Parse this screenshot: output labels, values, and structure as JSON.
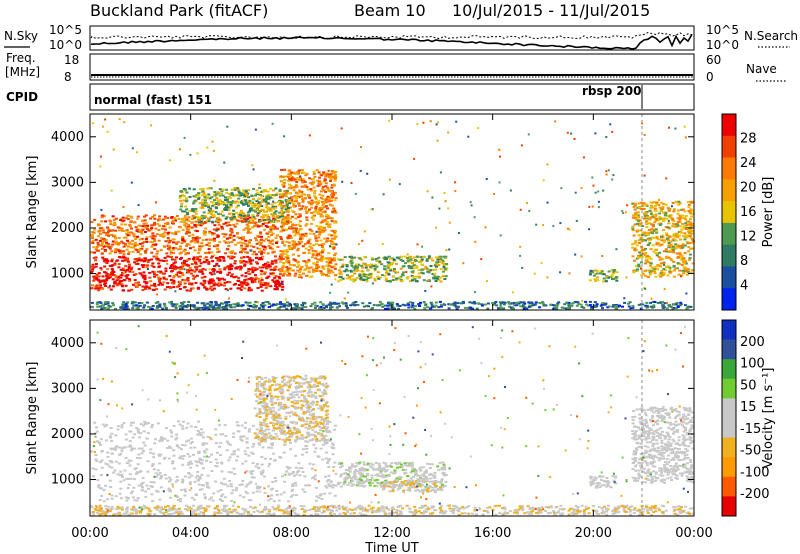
{
  "header": {
    "station": "Buckland Park (fitACF)",
    "beam": "Beam 10",
    "date_range": "10/Jul/2015 - 11/Jul/2015"
  },
  "summary_panels": {
    "nsky_label": "N.Sky",
    "nsearch_label": "N.Search",
    "noise_ticks": [
      "10^5",
      "10^0"
    ],
    "freq_label": "Freq.",
    "freq_unit": "[MHz]",
    "freq_ticks": [
      "18",
      "8"
    ],
    "nave_label": "Nave",
    "nave_ticks": [
      "60",
      "0"
    ],
    "cpid_label": "CPID",
    "cpid_modes": [
      "normal (fast) 151",
      "rbsp 200"
    ]
  },
  "colors": {
    "power_scale": [
      "#0022ee",
      "#1d4fa0",
      "#2f7a62",
      "#4f9a52",
      "#e8c400",
      "#f5a000",
      "#ff7a00",
      "#f04000",
      "#ee0000"
    ],
    "velocity_scale": [
      "#e60000",
      "#ff5a00",
      "#ff9a00",
      "#f0b020",
      "#c8c8c8",
      "#c8c8c8",
      "#70cc30",
      "#3aa838",
      "#30509a",
      "#1030c0"
    ],
    "scatter_gray": "#c4c4c4"
  },
  "chart_data": [
    {
      "type": "heatmap",
      "name": "power",
      "xlabel": "",
      "ylabel": "Slant Range [km]",
      "yticks": [
        "1000",
        "2000",
        "3000",
        "4000"
      ],
      "ylim": [
        200,
        4500
      ],
      "xlim": [
        0,
        24
      ],
      "colorbar": {
        "label": "Power [dB]",
        "ticks": [
          "28",
          "24",
          "20",
          "16",
          "12",
          "8",
          "4"
        ],
        "range": [
          0,
          32
        ]
      },
      "features": [
        {
          "t_start": 0.0,
          "t_end": 7.7,
          "range_km": [
            600,
            1400
          ],
          "power_db": 30
        },
        {
          "t_start": 0.0,
          "t_end": 7.5,
          "range_km": [
            1400,
            2300
          ],
          "power_db": 24
        },
        {
          "t_start": 7.5,
          "t_end": 9.8,
          "range_km": [
            900,
            3300
          ],
          "power_db": 22
        },
        {
          "t_start": 3.5,
          "t_end": 8.0,
          "range_km": [
            2100,
            2900
          ],
          "power_db": 14
        },
        {
          "t_start": 9.8,
          "t_end": 14.2,
          "range_km": [
            800,
            1400
          ],
          "power_db": 14
        },
        {
          "t_start": 19.8,
          "t_end": 21.0,
          "range_km": [
            800,
            1100
          ],
          "power_db": 14
        },
        {
          "t_start": 21.5,
          "t_end": 24.0,
          "range_km": [
            900,
            2600
          ],
          "power_db": 18
        },
        {
          "t_start": 0.0,
          "t_end": 24.0,
          "range_km": [
            200,
            400
          ],
          "power_db": 8
        }
      ]
    },
    {
      "type": "heatmap",
      "name": "velocity",
      "xlabel": "Time UT",
      "ylabel": "Slant Range [km]",
      "xticks": [
        "00:00",
        "04:00",
        "08:00",
        "12:00",
        "16:00",
        "20:00",
        "00:00"
      ],
      "yticks": [
        "1000",
        "2000",
        "3000",
        "4000"
      ],
      "ylim": [
        200,
        4500
      ],
      "xlim": [
        0,
        24
      ],
      "colorbar": {
        "label": "Velocity [m s⁻¹]",
        "ticks": [
          "200",
          "100",
          "50",
          "15",
          "-15",
          "-50",
          "-100",
          "-200"
        ],
        "range": [
          -250,
          250
        ]
      },
      "features": [
        {
          "t_start": 0.0,
          "t_end": 9.8,
          "range_km": [
            500,
            2300
          ],
          "velocity": 0
        },
        {
          "t_start": 6.5,
          "t_end": 9.5,
          "range_km": [
            1800,
            3300
          ],
          "velocity": -40
        },
        {
          "t_start": 9.8,
          "t_end": 14.2,
          "range_km": [
            800,
            1400
          ],
          "velocity": 30
        },
        {
          "t_start": 11.5,
          "t_end": 14.0,
          "range_km": [
            700,
            1000
          ],
          "velocity": -40
        },
        {
          "t_start": 0.0,
          "t_end": 24.0,
          "range_km": [
            200,
            450
          ],
          "velocity": -40
        },
        {
          "t_start": 19.8,
          "t_end": 21.0,
          "range_km": [
            800,
            1100
          ],
          "velocity": 0
        },
        {
          "t_start": 21.5,
          "t_end": 24.0,
          "range_km": [
            900,
            2600
          ],
          "velocity": 0
        }
      ]
    }
  ]
}
